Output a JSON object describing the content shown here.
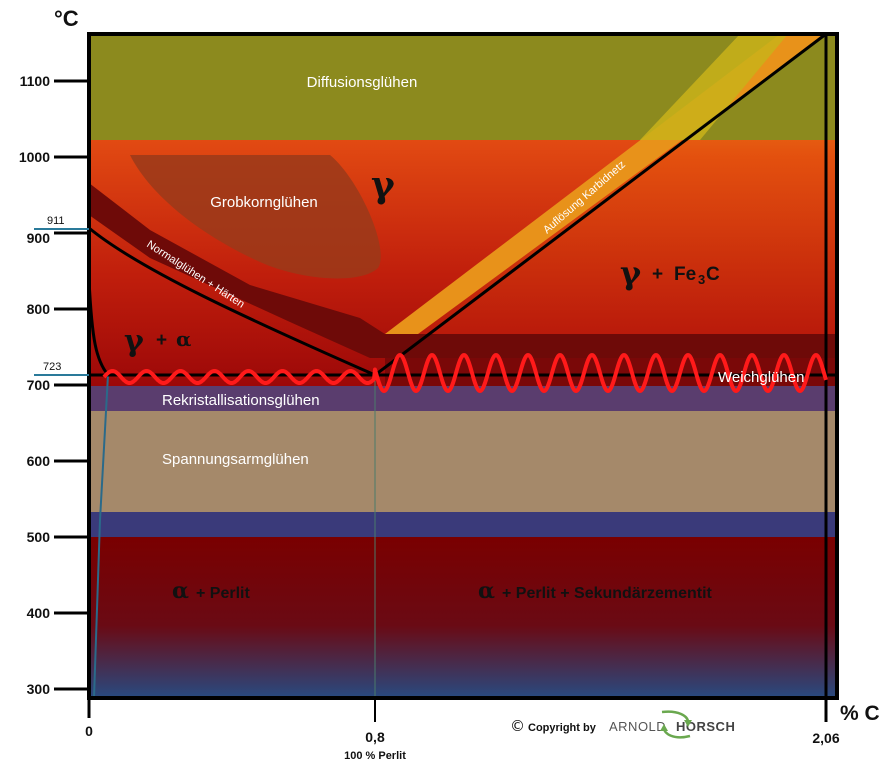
{
  "diagram": {
    "y_unit": "°C",
    "x_unit": "% C",
    "y_ticks": [
      "1100",
      "1000",
      "900",
      "800",
      "700",
      "600",
      "500",
      "400",
      "300"
    ],
    "special_ticks": [
      "911",
      "723"
    ],
    "x_ticks": [
      "0",
      "0,8",
      "2,06"
    ],
    "x_sublabel": "100 % Perlit",
    "regions": {
      "diffusion": "Diffusionsglühen",
      "grobkorn": "Grobkornglühen",
      "normal": "Normalglühen + Härten",
      "karbid": "Auflösung Karbidnetz",
      "weich": "Weichglühen",
      "rekrist": "Rekristallisationsglühen",
      "spannung": "Spannungsarmglühen"
    },
    "phases": {
      "gamma": "γ",
      "gamma_alpha_greek": "γ",
      "gamma_alpha_alpha": "α",
      "plus": "+",
      "gamma_fe3c_greek": "γ",
      "fe3c_prefix": "Fe",
      "fe3c_sub": "3",
      "fe3c_suffix": "C",
      "alpha": "α",
      "perlit": "+ Perlit",
      "perlit_sek": "+ Perlit + Sekundärzementit"
    },
    "copyright": {
      "symbol": "©",
      "text": "Copyright by",
      "brand_light": "ARNOLD",
      "brand_bold": "HORSCH"
    },
    "colors": {
      "diffusion": "#8f8a1e",
      "gamma_top": "#d8400f",
      "gamma_bottom": "#a00a0a",
      "grobkorn": "#9a3a1a",
      "normal_band": "#6e0a08",
      "karbid_band": "#e8921a",
      "weich_band": "#7a0808",
      "wave": "#ff1a1a",
      "rekrist": "#5a3d6e",
      "spannung": "#a5896a",
      "blue_band": "#3a3a7a",
      "perlit_top": "#7a0000",
      "perlit_bottom": "#2d4a7a",
      "axis": "#000000",
      "tick_blue": "#2a7a9a"
    }
  }
}
